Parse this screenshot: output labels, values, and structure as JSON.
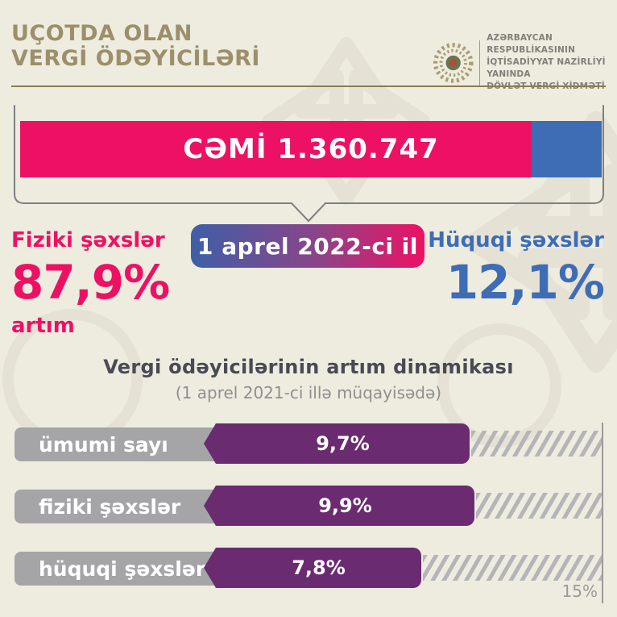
{
  "header": {
    "title_line1": "UÇOTDA OLAN",
    "title_line2": "VERGİ ÖDƏYİCİLƏRİ",
    "agency_line1": "AZƏRBAYCAN RESPUBLİKASININ",
    "agency_line2": "İQTİSADİYYAT NAZİRLİYİ YANINDA",
    "agency_line3": "DÖVLƏT VERGİ XİDMƏTİ"
  },
  "total_bar": {
    "label": "CƏMİ 1.360.747",
    "total": 1360747,
    "pink_pct": 87.9,
    "blue_pct": 12.1,
    "pink_color": "#ED1164",
    "blue_color": "#3E6DB5"
  },
  "date_badge": {
    "label": "1 aprel 2022-ci il",
    "gradient_from": "#3E5FA8",
    "gradient_to": "#ED1164"
  },
  "left_stat": {
    "title": "Fiziki şəxslər",
    "value": "87,9%",
    "note": "artım",
    "color": "#ED1164"
  },
  "right_stat": {
    "title": "Hüquqi şəxslər",
    "value": "12,1%",
    "color": "#3E6DB5"
  },
  "chart_data": {
    "type": "bar",
    "orientation": "horizontal",
    "title": "Vergi ödəyicilərinin artım dinamikası",
    "subtitle": "(1 aprel 2021-ci illə müqayisədə)",
    "categories": [
      "ümumi sayı",
      "fiziki şəxslər",
      "hüquqi şəxslər"
    ],
    "values": [
      9.7,
      9.9,
      7.8
    ],
    "value_labels": [
      "9,7%",
      "9,9%",
      "7,8%"
    ],
    "xlim": [
      0,
      15
    ],
    "axis_max_label": "15%",
    "bar_color": "#6A2B70",
    "label_bg_color": "#A5A5A7",
    "grid": "off",
    "legend": "none"
  }
}
